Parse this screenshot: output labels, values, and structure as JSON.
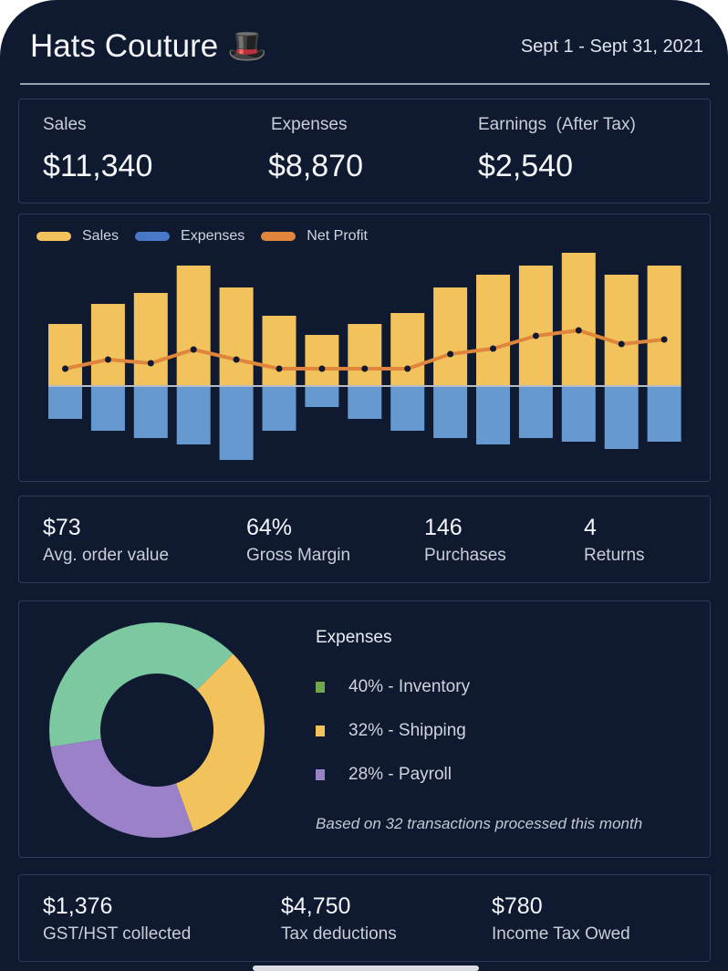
{
  "header": {
    "title": "Hats Couture",
    "title_icon": "top-hat-icon",
    "date_range": "Sept 1 - Sept 31, 2021"
  },
  "summary": [
    {
      "label": "Sales",
      "value": "$11,340"
    },
    {
      "label": "Expenses",
      "value": "$8,870"
    },
    {
      "label": "Earnings  (After Tax)",
      "value": "$2,540"
    }
  ],
  "chart_data": {
    "type": "bar",
    "legend_placement": "top-left",
    "grid": false,
    "series": [
      {
        "name": "Sales",
        "color": "#f2c35c",
        "values": [
          68,
          90,
          102,
          132,
          108,
          77,
          56,
          68,
          80,
          108,
          122,
          132,
          146,
          122,
          132
        ]
      },
      {
        "name": "Expenses",
        "color": "#6699d0",
        "values": [
          -35,
          -48,
          -56,
          -63,
          -80,
          -48,
          -22,
          -35,
          -48,
          -56,
          -63,
          -56,
          -60,
          -68,
          -60
        ]
      },
      {
        "name": "Net Profit",
        "color": "#e0853c",
        "type": "line",
        "values": [
          19,
          29,
          25,
          40,
          29,
          19,
          19,
          19,
          19,
          35,
          41,
          55,
          61,
          46,
          51
        ]
      }
    ],
    "legend_colors": {
      "Sales": "#f2c35c",
      "Expenses": "#4a78c8",
      "Net Profit": "#e0853c"
    }
  },
  "metrics": [
    {
      "value": "$73",
      "label": "Avg. order value"
    },
    {
      "value": "64%",
      "label": "Gross Margin"
    },
    {
      "value": "146",
      "label": "Purchases"
    },
    {
      "value": "4",
      "label": "Returns"
    }
  ],
  "expenses": {
    "title": "Expenses",
    "items": [
      {
        "pct": 40,
        "text": "40% - Inventory",
        "color": "#7cc8a0",
        "legend_color": "#6ea84a"
      },
      {
        "pct": 32,
        "text": "32% - Shipping",
        "color": "#f2c35c",
        "legend_color": "#f2c35c"
      },
      {
        "pct": 28,
        "text": "28% - Payroll",
        "color": "#9b82c8",
        "legend_color": "#9b82c8"
      }
    ],
    "note": "Based on 32 transactions processed this month"
  },
  "taxes": [
    {
      "value": "$1,376",
      "label": "GST/HST collected"
    },
    {
      "value": "$4,750",
      "label": "Tax deductions"
    },
    {
      "value": "$780",
      "label": "Income Tax Owed"
    }
  ]
}
